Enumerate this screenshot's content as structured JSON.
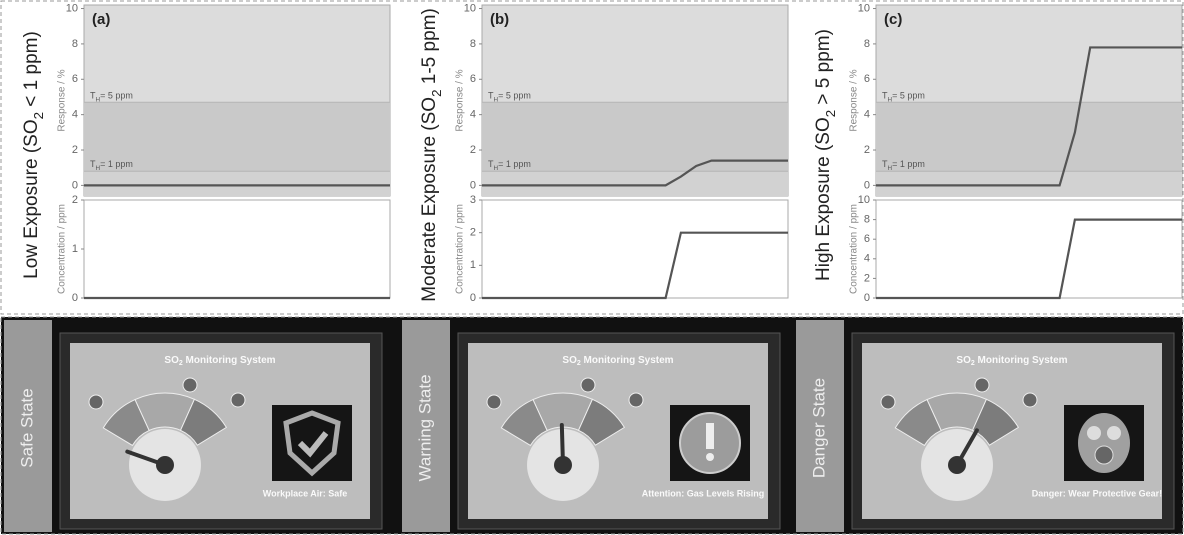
{
  "chart_data": [
    {
      "type": "line",
      "title": "(a)",
      "ylabel": "Response / %",
      "ylim": [
        -0.6,
        10.2
      ],
      "yticks": [
        0,
        2,
        4,
        6,
        8,
        10
      ],
      "thresholds": [
        {
          "value": 4.7,
          "label": "T",
          "sub": "H",
          "text": "= 5 ppm"
        },
        {
          "value": 0.8,
          "label": "T",
          "sub": "H",
          "text": "= 1 ppm"
        }
      ],
      "categories": [
        null,
        null,
        null,
        null,
        null,
        null,
        null,
        null,
        null,
        null,
        null,
        null,
        null,
        null,
        null,
        null,
        null,
        null,
        null,
        null,
        null
      ],
      "series": [
        {
          "color": "#555555",
          "values": [
            0,
            0,
            0,
            0,
            0,
            0,
            0,
            0,
            0,
            0,
            0,
            0,
            0,
            0,
            0,
            0,
            0,
            0,
            0,
            0,
            0
          ]
        }
      ]
    },
    {
      "type": "line",
      "ylabel": "Concentration / ppm",
      "ylim": [
        0,
        2
      ],
      "yticks": [
        0,
        1,
        2
      ],
      "categories": [
        null,
        null,
        null,
        null,
        null,
        null,
        null,
        null,
        null,
        null,
        null,
        null,
        null,
        null,
        null,
        null,
        null,
        null,
        null,
        null,
        null
      ],
      "series": [
        {
          "color": "#555555",
          "values": [
            0,
            0,
            0,
            0,
            0,
            0,
            0,
            0,
            0,
            0,
            0,
            0,
            0,
            0,
            0,
            0,
            0,
            0,
            0,
            0,
            0
          ]
        }
      ]
    },
    {
      "type": "line",
      "title": "(b)",
      "ylabel": "Response / %",
      "ylim": [
        -0.6,
        10.2
      ],
      "yticks": [
        0,
        2,
        4,
        6,
        8,
        10
      ],
      "thresholds": [
        {
          "value": 4.7,
          "label": "T",
          "sub": "H",
          "text": "= 5 ppm"
        },
        {
          "value": 0.8,
          "label": "T",
          "sub": "H",
          "text": "= 1 ppm"
        }
      ],
      "categories": [
        null,
        null,
        null,
        null,
        null,
        null,
        null,
        null,
        null,
        null,
        null,
        null,
        null,
        null,
        null,
        null,
        null,
        null,
        null,
        null,
        null
      ],
      "series": [
        {
          "color": "#555555",
          "values": [
            0,
            0,
            0,
            0,
            0,
            0,
            0,
            0,
            0,
            0,
            0,
            0,
            0,
            0.5,
            1.1,
            1.4,
            1.4,
            1.4,
            1.4,
            1.4,
            1.4
          ]
        }
      ]
    },
    {
      "type": "line",
      "ylabel": "Concentration / ppm",
      "ylim": [
        0,
        3
      ],
      "yticks": [
        0,
        1,
        2,
        3
      ],
      "categories": [
        null,
        null,
        null,
        null,
        null,
        null,
        null,
        null,
        null,
        null,
        null,
        null,
        null,
        null,
        null,
        null,
        null,
        null,
        null,
        null,
        null
      ],
      "series": [
        {
          "color": "#555555",
          "values": [
            0,
            0,
            0,
            0,
            0,
            0,
            0,
            0,
            0,
            0,
            0,
            0,
            0,
            2,
            2,
            2,
            2,
            2,
            2,
            2,
            2
          ]
        }
      ]
    },
    {
      "type": "line",
      "title": "(c)",
      "ylabel": "Response / %",
      "ylim": [
        -0.6,
        10.2
      ],
      "yticks": [
        0,
        2,
        4,
        6,
        8,
        10
      ],
      "thresholds": [
        {
          "value": 4.7,
          "label": "T",
          "sub": "H",
          "text": "= 5 ppm"
        },
        {
          "value": 0.8,
          "label": "T",
          "sub": "H",
          "text": "= 1 ppm"
        }
      ],
      "categories": [
        null,
        null,
        null,
        null,
        null,
        null,
        null,
        null,
        null,
        null,
        null,
        null,
        null,
        null,
        null,
        null,
        null,
        null,
        null,
        null,
        null
      ],
      "series": [
        {
          "color": "#555555",
          "values": [
            0,
            0,
            0,
            0,
            0,
            0,
            0,
            0,
            0,
            0,
            0,
            0,
            0,
            3,
            7.8,
            7.8,
            7.8,
            7.8,
            7.8,
            7.8,
            7.8
          ]
        }
      ]
    },
    {
      "type": "line",
      "ylabel": "Concentration / ppm",
      "ylim": [
        0,
        10
      ],
      "yticks": [
        0,
        2,
        4,
        6,
        8,
        10
      ],
      "categories": [
        null,
        null,
        null,
        null,
        null,
        null,
        null,
        null,
        null,
        null,
        null,
        null,
        null,
        null,
        null,
        null,
        null,
        null,
        null,
        null,
        null
      ],
      "series": [
        {
          "color": "#555555",
          "values": [
            0,
            0,
            0,
            0,
            0,
            0,
            0,
            0,
            0,
            0,
            0,
            0,
            0,
            8,
            8,
            8,
            8,
            8,
            8,
            8,
            8
          ]
        }
      ]
    }
  ],
  "panels": [
    {
      "side_label": [
        "Low Exposure (SO",
        "2",
        " < 1 ppm)"
      ],
      "state": "Safe State",
      "screen_title": [
        "SO",
        "2",
        " Monitoring System"
      ],
      "message": "Workplace Air: Safe"
    },
    {
      "side_label": [
        "Moderate Exposure (SO",
        "2",
        " 1-5 ppm)"
      ],
      "state": "Warning State",
      "screen_title": [
        "SO",
        "2",
        " Monitoring System"
      ],
      "message": "Attention: Gas Levels Rising"
    },
    {
      "side_label": [
        "High Exposure (SO",
        "2",
        " > 5 ppm)"
      ],
      "state": "Danger State",
      "screen_title": [
        "SO",
        "2",
        " Monitoring System"
      ],
      "message": "Danger: Wear Protective Gear!"
    }
  ]
}
